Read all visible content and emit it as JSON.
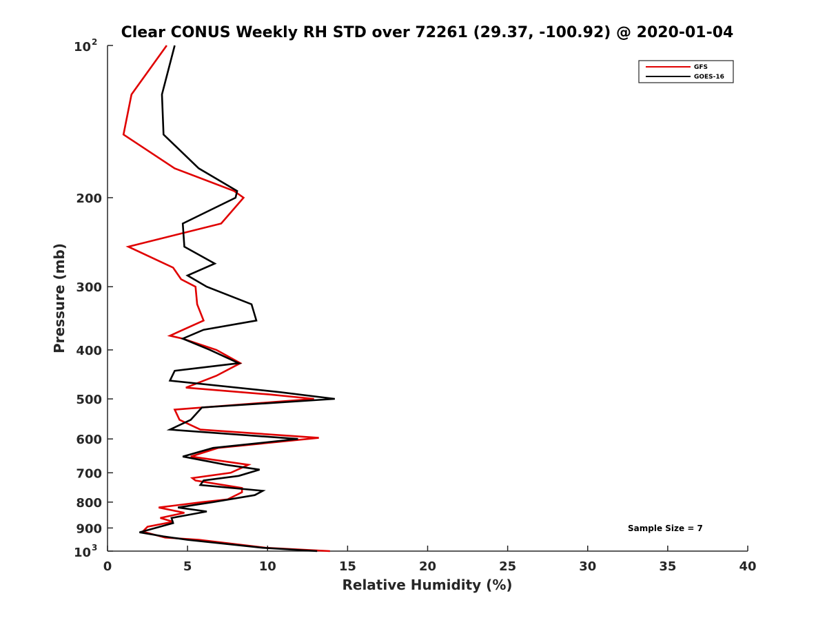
{
  "chart_data": {
    "type": "line",
    "title": "Clear CONUS Weekly RH STD over 72261 (29.37, -100.92) @ 2020-01-04",
    "xlabel": "Relative Humidity (%)",
    "ylabel": "Pressure (mb)",
    "xlim": [
      0,
      40
    ],
    "ylim": [
      100,
      1000
    ],
    "y_scale": "log",
    "y_reversed": true,
    "x_ticks": [
      "0",
      "5",
      "10",
      "15",
      "20",
      "25",
      "30",
      "35",
      "40"
    ],
    "x_tick_values": [
      0,
      5,
      10,
      15,
      20,
      25,
      30,
      35,
      40
    ],
    "y_tick_values": [
      100,
      200,
      300,
      400,
      500,
      600,
      700,
      800,
      900,
      1000
    ],
    "y_ticks": [
      {
        "value": 100,
        "base": "10",
        "exp": "2"
      },
      {
        "value": 200,
        "label": "200"
      },
      {
        "value": 300,
        "label": "300"
      },
      {
        "value": 400,
        "label": "400"
      },
      {
        "value": 500,
        "label": "500"
      },
      {
        "value": 600,
        "label": "600"
      },
      {
        "value": 700,
        "label": "700"
      },
      {
        "value": 800,
        "label": "800"
      },
      {
        "value": 900,
        "label": "900"
      },
      {
        "value": 1000,
        "base": "10",
        "exp": "3"
      }
    ],
    "grid": false,
    "legend_position": "top-right",
    "annotation": "Sample Size = 7",
    "series": [
      {
        "name": "GFS",
        "color": "#e00000",
        "points": [
          [
            3.7,
            100
          ],
          [
            1.5,
            125
          ],
          [
            1.0,
            150
          ],
          [
            4.2,
            175
          ],
          [
            7.9,
            194
          ],
          [
            8.5,
            200
          ],
          [
            7.1,
            225
          ],
          [
            1.3,
            250
          ],
          [
            4.1,
            275
          ],
          [
            4.6,
            290
          ],
          [
            5.5,
            300
          ],
          [
            5.6,
            325
          ],
          [
            6.0,
            350
          ],
          [
            3.9,
            375
          ],
          [
            4.7,
            380
          ],
          [
            6.8,
            400
          ],
          [
            8.3,
            425
          ],
          [
            6.8,
            450
          ],
          [
            4.9,
            475
          ],
          [
            10.1,
            490
          ],
          [
            12.9,
            500
          ],
          [
            4.2,
            525
          ],
          [
            4.5,
            550
          ],
          [
            5.8,
            575
          ],
          [
            13.2,
            597
          ],
          [
            6.9,
            625
          ],
          [
            5.2,
            650
          ],
          [
            8.8,
            675
          ],
          [
            7.7,
            700
          ],
          [
            5.3,
            717
          ],
          [
            5.5,
            725
          ],
          [
            8.4,
            750
          ],
          [
            8.4,
            765
          ],
          [
            7.5,
            790
          ],
          [
            5.9,
            800
          ],
          [
            3.2,
            820
          ],
          [
            4.8,
            840
          ],
          [
            3.3,
            860
          ],
          [
            4.1,
            875
          ],
          [
            2.5,
            895
          ],
          [
            2.2,
            915
          ],
          [
            3.6,
            940
          ],
          [
            5.7,
            950
          ],
          [
            9.9,
            985
          ],
          [
            13.9,
            1000
          ]
        ]
      },
      {
        "name": "GOES-16",
        "color": "#000000",
        "points": [
          [
            4.2,
            100
          ],
          [
            3.4,
            125
          ],
          [
            3.5,
            150
          ],
          [
            5.7,
            175
          ],
          [
            8.1,
            194
          ],
          [
            8.0,
            200
          ],
          [
            4.7,
            225
          ],
          [
            4.8,
            250
          ],
          [
            6.7,
            270
          ],
          [
            5.0,
            285
          ],
          [
            6.2,
            300
          ],
          [
            9.0,
            325
          ],
          [
            9.3,
            350
          ],
          [
            6.0,
            365
          ],
          [
            4.7,
            380
          ],
          [
            6.4,
            400
          ],
          [
            8.2,
            425
          ],
          [
            4.2,
            440
          ],
          [
            3.9,
            460
          ],
          [
            10.8,
            485
          ],
          [
            14.2,
            500
          ],
          [
            5.9,
            520
          ],
          [
            5.2,
            550
          ],
          [
            3.9,
            575
          ],
          [
            11.9,
            600
          ],
          [
            6.6,
            625
          ],
          [
            4.7,
            650
          ],
          [
            7.4,
            675
          ],
          [
            9.5,
            690
          ],
          [
            8.2,
            710
          ],
          [
            6.0,
            725
          ],
          [
            5.8,
            740
          ],
          [
            9.7,
            760
          ],
          [
            9.2,
            775
          ],
          [
            6.6,
            800
          ],
          [
            4.4,
            820
          ],
          [
            6.2,
            835
          ],
          [
            4.0,
            860
          ],
          [
            4.1,
            880
          ],
          [
            3.0,
            900
          ],
          [
            2.0,
            918
          ],
          [
            3.5,
            935
          ],
          [
            5.0,
            950
          ],
          [
            9.7,
            985
          ],
          [
            13.1,
            1000
          ]
        ]
      }
    ]
  }
}
